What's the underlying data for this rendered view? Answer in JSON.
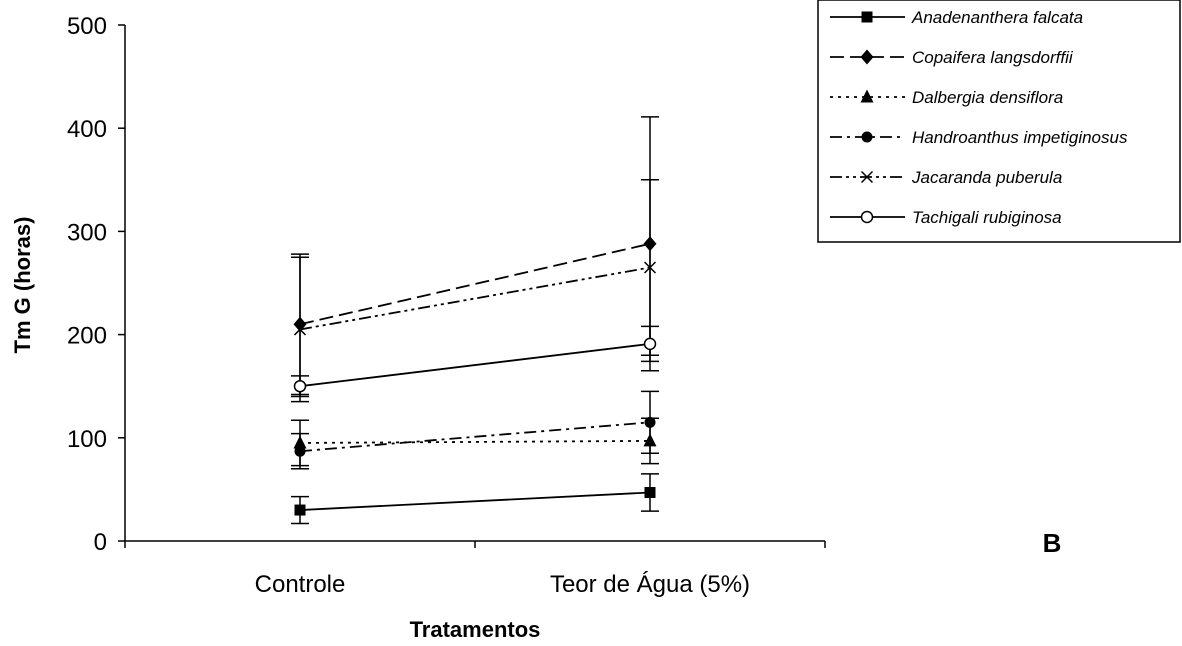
{
  "chart_data": {
    "type": "line",
    "title": "",
    "panel_label": "B",
    "xlabel": "Tratamentos",
    "ylabel": "Tm G (horas)",
    "categories": [
      "Controle",
      "Teor de Água (5%)"
    ],
    "ylim": [
      0,
      500
    ],
    "yticks": [
      0,
      100,
      200,
      300,
      400,
      500
    ],
    "grid": false,
    "legend_position": "top-right",
    "series": [
      {
        "name": "Anadenanthera falcata",
        "values": [
          30,
          47
        ],
        "error": [
          13,
          18
        ],
        "marker": "square",
        "dash": "solid"
      },
      {
        "name": "Copaifera langsdorffii",
        "values": [
          210,
          288
        ],
        "error": [
          68,
          123
        ],
        "marker": "diamond",
        "dash": "long-dash"
      },
      {
        "name": "Dalbergia densiflora",
        "values": [
          95,
          97
        ],
        "error": [
          22,
          22
        ],
        "marker": "triangle",
        "dash": "dotted"
      },
      {
        "name": "Handroanthus impetiginosus",
        "values": [
          87,
          115
        ],
        "error": [
          17,
          30
        ],
        "marker": "circle-filled",
        "dash": "dash-dot"
      },
      {
        "name": "Jacaranda puberula",
        "values": [
          205,
          265
        ],
        "error": [
          70,
          85
        ],
        "marker": "x",
        "dash": "dash-dot-dot"
      },
      {
        "name": "Tachigali rubiginosa",
        "values": [
          150,
          191
        ],
        "error": [
          10,
          17
        ],
        "marker": "circle-open",
        "dash": "solid"
      }
    ]
  }
}
